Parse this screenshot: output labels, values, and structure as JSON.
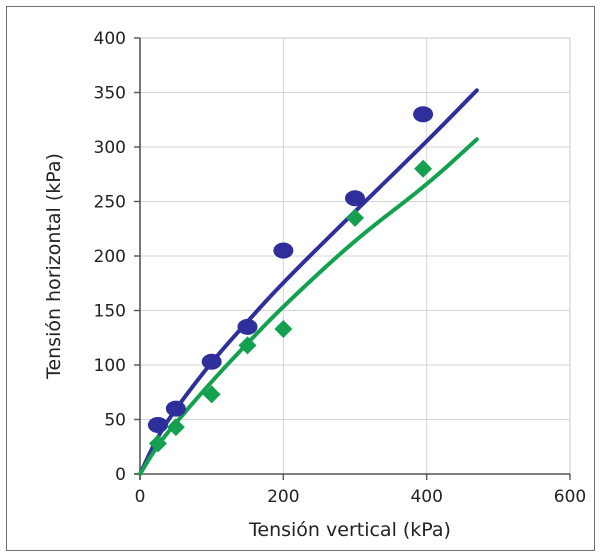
{
  "chart_data": {
    "type": "scatter",
    "xlabel": "Tensión vertical (kPa)",
    "ylabel": "Tensión horizontal (kPa)",
    "xlim": [
      0,
      600
    ],
    "ylim": [
      0,
      400
    ],
    "xticks": [
      0,
      200,
      400,
      600
    ],
    "yticks": [
      0,
      50,
      100,
      150,
      200,
      250,
      300,
      350,
      400
    ],
    "grid": true,
    "legend": "none",
    "series": [
      {
        "marker": "circle",
        "color": "#2e2f9a",
        "points": [
          {
            "x": 25,
            "y": 45
          },
          {
            "x": 50,
            "y": 60
          },
          {
            "x": 100,
            "y": 103
          },
          {
            "x": 150,
            "y": 135
          },
          {
            "x": 200,
            "y": 205
          },
          {
            "x": 300,
            "y": 253
          },
          {
            "x": 395,
            "y": 330
          }
        ],
        "fit_curve": [
          {
            "x": 0,
            "y": 0
          },
          {
            "x": 25,
            "y": 35
          },
          {
            "x": 50,
            "y": 60
          },
          {
            "x": 100,
            "y": 103
          },
          {
            "x": 150,
            "y": 140
          },
          {
            "x": 200,
            "y": 176
          },
          {
            "x": 300,
            "y": 241
          },
          {
            "x": 400,
            "y": 305
          },
          {
            "x": 470,
            "y": 352
          }
        ]
      },
      {
        "marker": "diamond",
        "color": "#13a150",
        "points": [
          {
            "x": 25,
            "y": 28
          },
          {
            "x": 50,
            "y": 43
          },
          {
            "x": 100,
            "y": 73
          },
          {
            "x": 150,
            "y": 118
          },
          {
            "x": 200,
            "y": 133
          },
          {
            "x": 300,
            "y": 235
          },
          {
            "x": 395,
            "y": 280
          }
        ],
        "fit_curve": [
          {
            "x": 0,
            "y": 0
          },
          {
            "x": 25,
            "y": 27
          },
          {
            "x": 50,
            "y": 47
          },
          {
            "x": 100,
            "y": 85
          },
          {
            "x": 150,
            "y": 120
          },
          {
            "x": 200,
            "y": 154
          },
          {
            "x": 300,
            "y": 215
          },
          {
            "x": 400,
            "y": 265
          },
          {
            "x": 470,
            "y": 307
          }
        ]
      }
    ]
  }
}
